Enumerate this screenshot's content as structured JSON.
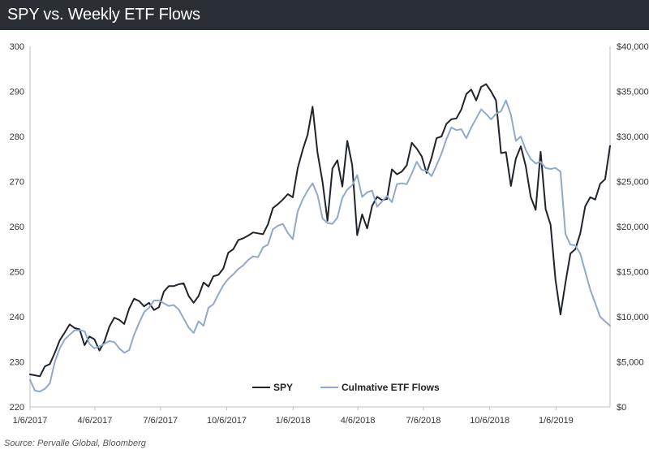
{
  "header": {
    "title": "SPY vs. Weekly ETF Flows"
  },
  "footer": {
    "source": "Source: Pervalle Global, Bloomberg"
  },
  "colors": {
    "title_bar": "#2a2e35",
    "spy": "#1f232b",
    "flows": "#8fa8cc"
  },
  "chart_data": {
    "type": "line",
    "title": "SPY vs. Weekly ETF Flows",
    "x_tick_labels": [
      "1/6/2017",
      "4/6/2017",
      "7/6/2017",
      "10/6/2017",
      "1/6/2018",
      "4/6/2018",
      "7/6/2018",
      "10/6/2018",
      "1/6/2019"
    ],
    "x_range": [
      "1/6/2017",
      "3/22/2019"
    ],
    "left_axis": {
      "ylim": [
        220,
        300
      ],
      "ticks": [
        220,
        230,
        240,
        250,
        260,
        270,
        280,
        290,
        300
      ],
      "tick_labels": [
        "220",
        "230",
        "240",
        "250",
        "260",
        "270",
        "280",
        "290",
        "300"
      ]
    },
    "right_axis": {
      "ylim": [
        0,
        40000
      ],
      "ticks": [
        0,
        5000,
        10000,
        15000,
        20000,
        25000,
        30000,
        35000,
        40000
      ],
      "tick_labels": [
        "$0",
        "$5,000",
        "$10,000",
        "$15,000",
        "$20,000",
        "$25,000",
        "$30,000",
        "$35,000",
        "$40,000"
      ]
    },
    "legend_position": "bottom-center",
    "grid": false,
    "series": [
      {
        "name": "SPY",
        "axis": "left",
        "color": "#1f232b",
        "values": [
          227.2,
          227.0,
          226.8,
          229.0,
          229.5,
          232.0,
          234.8,
          236.5,
          238.3,
          237.5,
          237.2,
          233.7,
          235.6,
          235.0,
          232.5,
          234.5,
          237.8,
          239.8,
          239.3,
          238.4,
          241.8,
          244.0,
          243.5,
          242.3,
          243.1,
          241.5,
          242.1,
          245.6,
          246.8,
          246.8,
          247.2,
          247.4,
          244.6,
          243.1,
          244.6,
          247.6,
          246.7,
          249.0,
          249.3,
          250.7,
          254.2,
          255.0,
          257.0,
          257.4,
          258.0,
          258.7,
          258.5,
          258.3,
          260.5,
          264.1,
          265.0,
          266.0,
          267.2,
          266.5,
          273.0,
          277.0,
          280.4,
          286.6,
          276.4,
          269.9,
          261.3,
          272.9,
          274.7,
          268.9,
          279.0,
          273.6,
          258.1,
          262.7,
          259.6,
          264.6,
          266.6,
          265.9,
          266.1,
          272.7,
          271.6,
          272.2,
          273.6,
          278.6,
          277.3,
          275.6,
          271.9,
          275.3,
          279.6,
          280.0,
          282.8,
          283.8,
          284.0,
          286.0,
          289.4,
          290.4,
          288.0,
          291.0,
          291.6,
          290.0,
          288.0,
          276.3,
          276.5,
          269.0,
          275.1,
          277.8,
          273.4,
          266.6,
          263.7,
          276.6,
          263.9,
          260.4,
          248.1,
          240.5,
          247.5,
          254.0,
          255.0,
          258.5,
          264.5,
          266.5,
          266.0,
          269.5,
          270.5,
          277.9
        ]
      },
      {
        "name": "Culmative ETF Flows",
        "axis": "right",
        "color": "#8fa8cc",
        "values": [
          3000,
          1800,
          1700,
          2000,
          2600,
          5000,
          6500,
          7500,
          8000,
          8500,
          8500,
          8400,
          7000,
          6500,
          6700,
          7000,
          7300,
          7200,
          6500,
          6000,
          6300,
          8000,
          9300,
          10500,
          11000,
          11800,
          11800,
          11500,
          11200,
          11300,
          10800,
          9800,
          8800,
          8200,
          9500,
          9000,
          11000,
          11400,
          12500,
          13500,
          14200,
          14700,
          15300,
          15700,
          16300,
          16700,
          16600,
          17700,
          18000,
          19700,
          20100,
          20300,
          19300,
          18600,
          21700,
          23000,
          24000,
          24800,
          23500,
          20900,
          20400,
          20300,
          21000,
          23200,
          24100,
          24600,
          25700,
          23300,
          23800,
          24000,
          22200,
          22800,
          23400,
          22700,
          24700,
          24800,
          24700,
          25900,
          27200,
          26300,
          26200,
          25600,
          26800,
          28100,
          29700,
          31000,
          30700,
          30800,
          29800,
          31000,
          32000,
          33000,
          32500,
          31900,
          32500,
          32800,
          34000,
          32400,
          29500,
          30000,
          28500,
          27500,
          27000,
          27200,
          26500,
          26400,
          26500,
          26100,
          19200,
          18000,
          17900,
          17000,
          15000,
          13000,
          11500,
          10000,
          9500,
          9000
        ]
      }
    ]
  }
}
